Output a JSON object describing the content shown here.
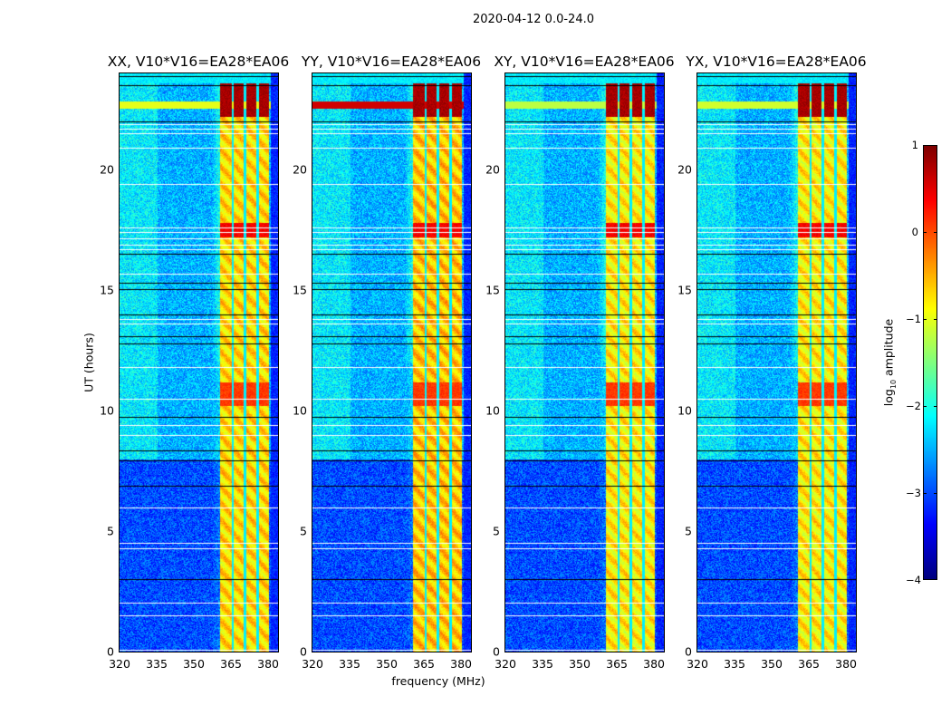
{
  "chart_data": {
    "type": "heatmap",
    "suptitle": "2020-04-12 0.0-24.0",
    "xlabel": "frequency (MHz)",
    "ylabel": "UT (hours)",
    "xlim": [
      320,
      384
    ],
    "ylim": [
      0,
      24
    ],
    "xticks": [
      "320",
      "335",
      "350",
      "365",
      "380"
    ],
    "xtick_values": [
      320,
      335,
      350,
      365,
      380
    ],
    "yticks": [
      "0",
      "5",
      "10",
      "15",
      "20"
    ],
    "ytick_values": [
      0,
      5,
      10,
      15,
      20
    ],
    "colorbar": {
      "label_prefix": "log",
      "label_sub": "10",
      "label_suffix": " amplitude",
      "range": [
        -4,
        1
      ],
      "ticks": [
        "1",
        "0",
        "−1",
        "−2",
        "−3",
        "−4"
      ],
      "tick_values": [
        1,
        0,
        -1,
        -2,
        -3,
        -4
      ],
      "colormap": "jet"
    },
    "panels": [
      {
        "title": "XX, V10*V16=EA28*EA06",
        "rfi_line_level": -1.0,
        "band_level": -0.7
      },
      {
        "title": "YY, V10*V16=EA28*EA06",
        "rfi_line_level": 0.6,
        "band_level": -0.6
      },
      {
        "title": "XY, V10*V16=EA28*EA06",
        "rfi_line_level": -1.2,
        "band_level": -0.8
      },
      {
        "title": "YX, V10*V16=EA28*EA06",
        "rfi_line_level": -1.1,
        "band_level": -0.8
      }
    ],
    "features": {
      "background_level_early": -3.0,
      "background_level_late": -2.5,
      "rfi_band_mhz": [
        360.5,
        380.0
      ],
      "band_gaps_mhz": [
        365.5,
        370.5,
        375.5
      ],
      "strong_bursts_hours": [
        [
          22.2,
          23.6,
          0.8
        ],
        [
          17.2,
          17.8,
          0.4
        ],
        [
          10.2,
          11.2,
          0.1
        ]
      ],
      "narrow_rfi_line_hours": [
        22.55,
        22.85
      ],
      "flagged_rows_hours": [
        21.9,
        21.7,
        21.5,
        20.9,
        19.4,
        17.6,
        17.4,
        17.15,
        16.9,
        16.7,
        15.7,
        13.8,
        13.6,
        11.8,
        10.5,
        9.4,
        9.0,
        6.0,
        4.5,
        4.3,
        2.05,
        1.5,
        0.07
      ],
      "black_rows_hours": [
        23.9,
        23.5,
        22.0,
        16.5,
        15.3,
        15.05,
        14.0,
        13.1,
        12.8,
        9.75,
        8.35,
        7.95,
        6.9,
        3.0
      ]
    }
  }
}
